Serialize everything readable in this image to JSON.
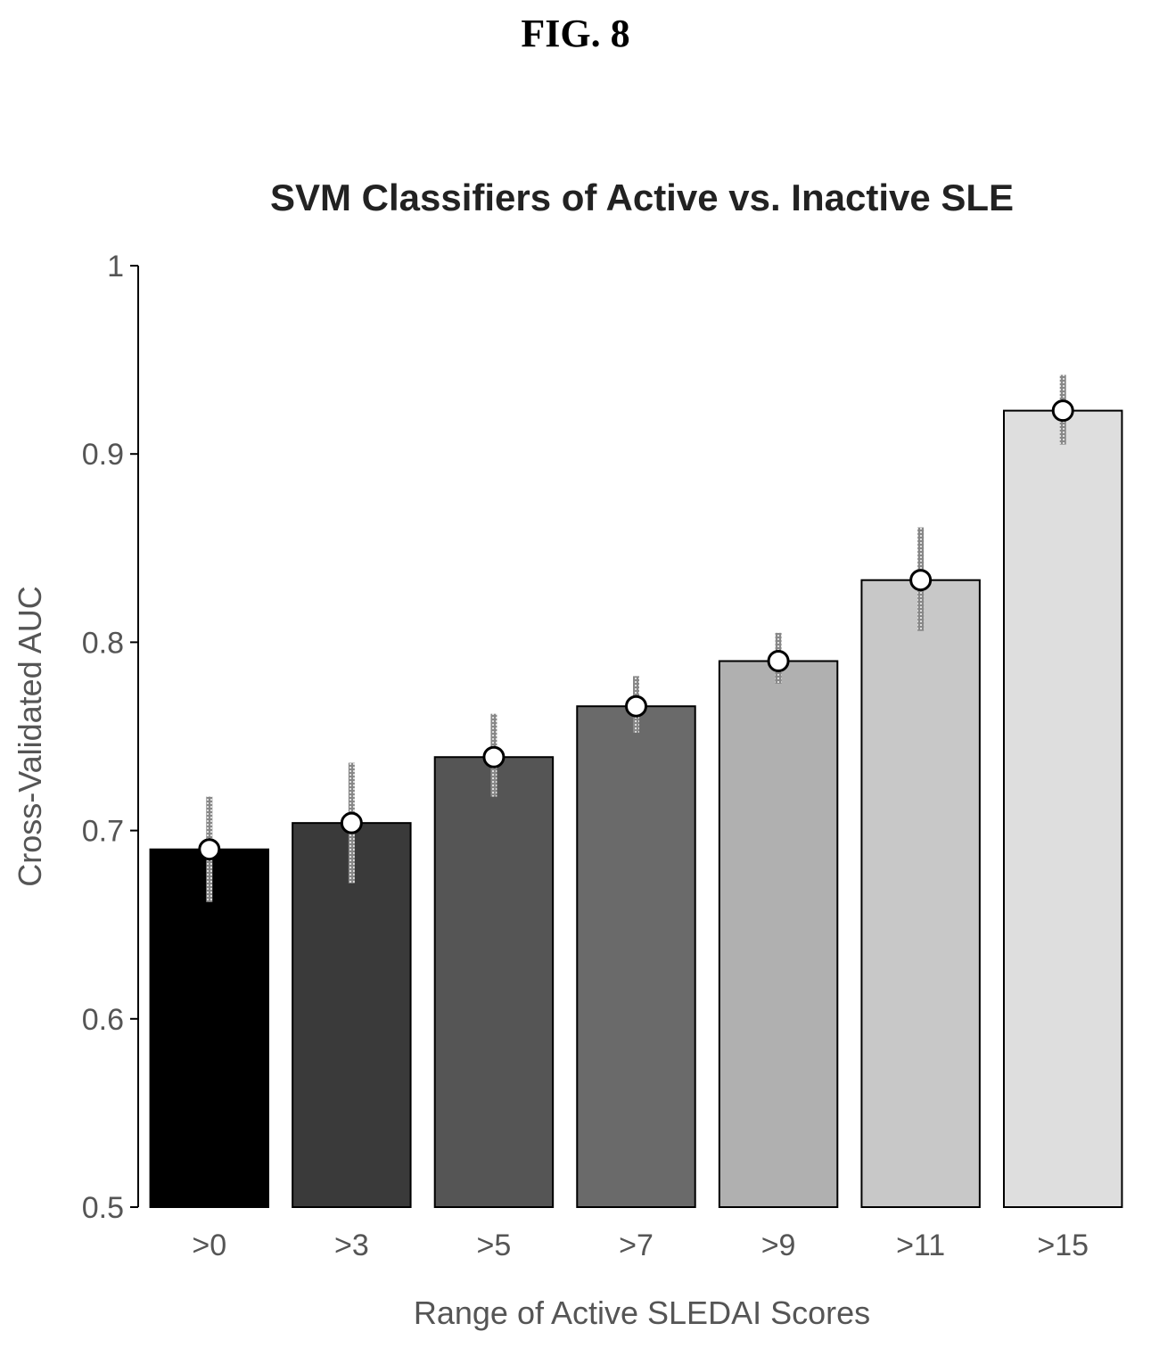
{
  "figure_label": "FIG. 8",
  "chart_data": {
    "type": "bar",
    "title": "SVM Classifiers of Active vs. Inactive SLE",
    "xlabel": "Range of Active SLEDAI Scores",
    "ylabel": "Cross-Validated AUC",
    "categories": [
      ">0",
      ">3",
      ">5",
      ">7",
      ">9",
      ">11",
      ">15"
    ],
    "values": [
      0.69,
      0.704,
      0.739,
      0.766,
      0.79,
      0.833,
      0.923
    ],
    "error_low": [
      0.662,
      0.672,
      0.718,
      0.752,
      0.778,
      0.806,
      0.905
    ],
    "error_high": [
      0.718,
      0.736,
      0.762,
      0.782,
      0.805,
      0.861,
      0.942
    ],
    "ylim": [
      0.5,
      1
    ],
    "yticks": [
      0.5,
      0.6,
      0.7,
      0.8,
      0.9,
      1
    ],
    "ytick_labels": [
      "0.5",
      "0.6",
      "0.7",
      "0.8",
      "0.9",
      "1"
    ],
    "grid": false,
    "bar_fills": [
      "#000000",
      "#3a3a3a",
      "#555555",
      "#6a6a6a",
      "#b0b0b0",
      "#c8c8c8",
      "#dedede"
    ]
  }
}
